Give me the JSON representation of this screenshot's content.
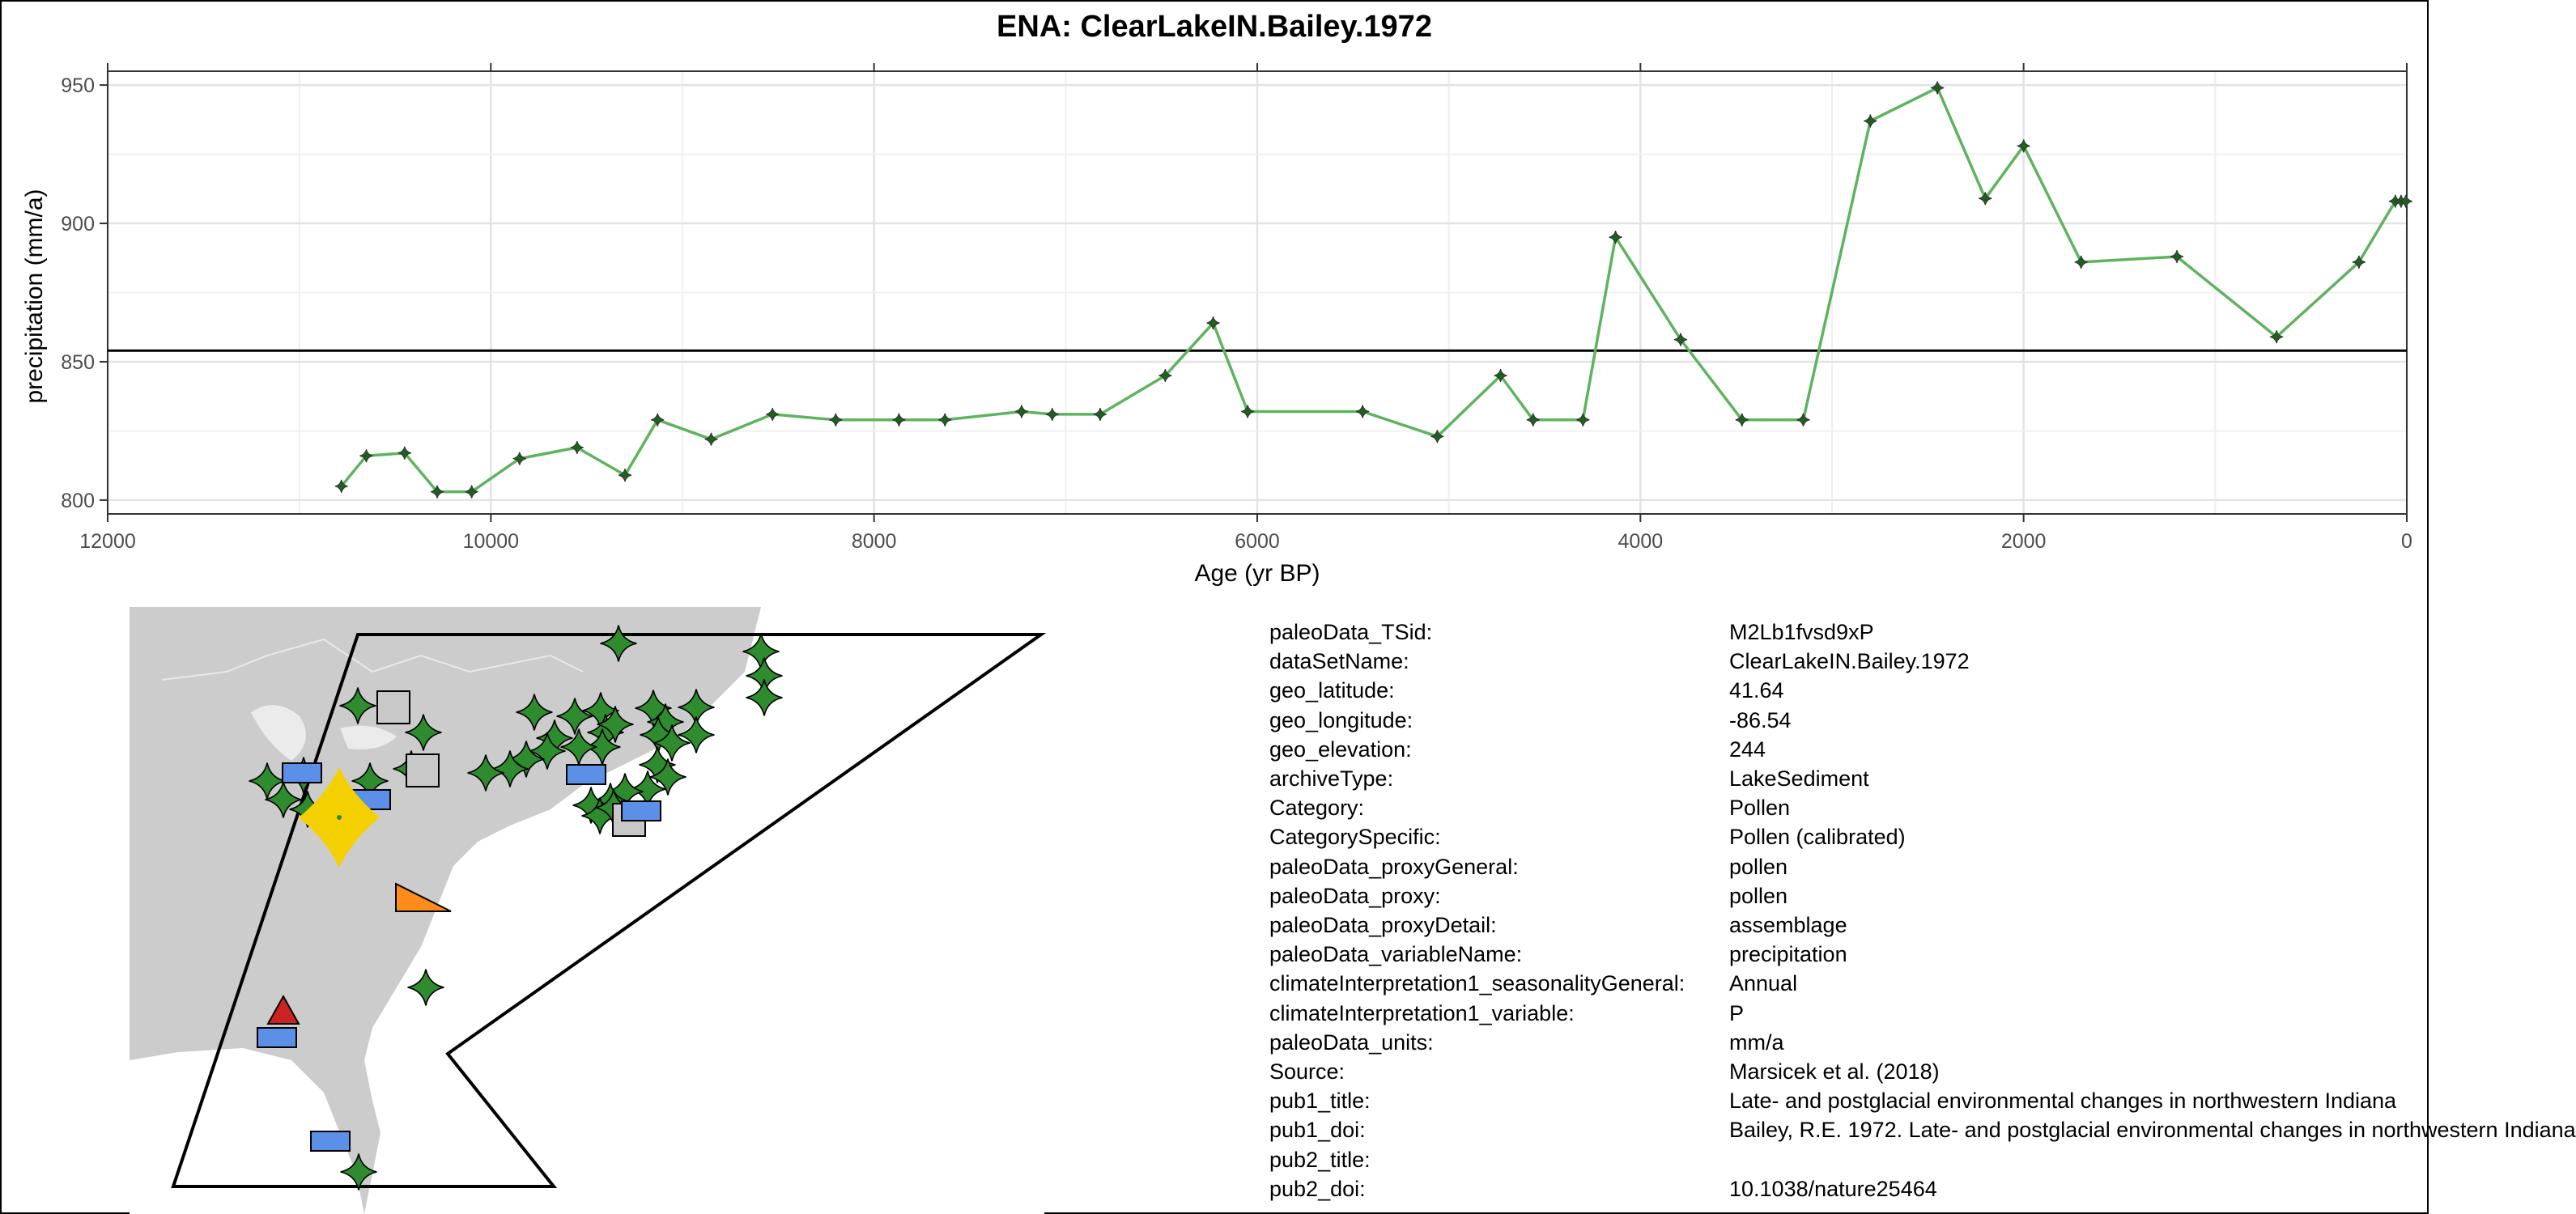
{
  "title": "ENA: ClearLakeIN.Bailey.1972",
  "chart_data": {
    "type": "line",
    "xlabel": "Age (yr BP)",
    "ylabel": "precipitation (mm/a)",
    "xlim": [
      12000,
      0
    ],
    "ylim": [
      795,
      955
    ],
    "x_reversed": true,
    "xticks": [
      12000,
      10000,
      8000,
      6000,
      4000,
      2000,
      0
    ],
    "yticks": [
      800,
      850,
      900,
      950
    ],
    "grid": true,
    "reference_line_y": 854,
    "series": [
      {
        "color": "#5fb35f",
        "marker_color": "#1f5f1f",
        "points": [
          [
            10780,
            805
          ],
          [
            10650,
            816
          ],
          [
            10450,
            817
          ],
          [
            10280,
            803
          ],
          [
            10100,
            803
          ],
          [
            9850,
            815
          ],
          [
            9550,
            819
          ],
          [
            9300,
            809
          ],
          [
            9130,
            829
          ],
          [
            8850,
            822
          ],
          [
            8530,
            831
          ],
          [
            8200,
            829
          ],
          [
            7870,
            829
          ],
          [
            7630,
            829
          ],
          [
            7230,
            832
          ],
          [
            7070,
            831
          ],
          [
            6820,
            831
          ],
          [
            6480,
            845
          ],
          [
            6230,
            864
          ],
          [
            6050,
            832
          ],
          [
            5450,
            832
          ],
          [
            5060,
            823
          ],
          [
            4730,
            845
          ],
          [
            4560,
            829
          ],
          [
            4300,
            829
          ],
          [
            4130,
            895
          ],
          [
            3790,
            858
          ],
          [
            3470,
            829
          ],
          [
            3150,
            829
          ],
          [
            2800,
            937
          ],
          [
            2450,
            949
          ],
          [
            2200,
            909
          ],
          [
            2000,
            928
          ],
          [
            1700,
            886
          ],
          [
            1200,
            888
          ],
          [
            680,
            859
          ],
          [
            250,
            886
          ],
          [
            60,
            908
          ],
          [
            30,
            908
          ],
          [
            5,
            908
          ]
        ]
      }
    ]
  },
  "map": {
    "land_color": "#cccccc",
    "water_color": "#ffffff",
    "highlight_color": "#f5d000",
    "sites": [
      {
        "shape": "star",
        "color": "#2e8b2e"
      },
      {
        "shape": "square",
        "color": "#c8c8c8"
      },
      {
        "shape": "rectangle",
        "color": "#5b8fe8"
      },
      {
        "shape": "triangle",
        "color": "#cc2222"
      },
      {
        "shape": "right-triangle",
        "color": "#ff8c1a"
      }
    ]
  },
  "metadata": [
    {
      "key": "paleoData_TSid:",
      "value": "M2Lb1fvsd9xP"
    },
    {
      "key": "dataSetName:",
      "value": "ClearLakeIN.Bailey.1972"
    },
    {
      "key": "geo_latitude:",
      "value": "41.64"
    },
    {
      "key": "geo_longitude:",
      "value": "-86.54"
    },
    {
      "key": "geo_elevation:",
      "value": "244"
    },
    {
      "key": "archiveType:",
      "value": "LakeSediment"
    },
    {
      "key": "Category:",
      "value": "Pollen"
    },
    {
      "key": "CategorySpecific:",
      "value": "Pollen (calibrated)"
    },
    {
      "key": "paleoData_proxyGeneral:",
      "value": "pollen"
    },
    {
      "key": "paleoData_proxy:",
      "value": "pollen"
    },
    {
      "key": "paleoData_proxyDetail:",
      "value": "assemblage"
    },
    {
      "key": "paleoData_variableName:",
      "value": "precipitation"
    },
    {
      "key": "climateInterpretation1_seasonalityGeneral:",
      "value": "Annual"
    },
    {
      "key": "climateInterpretation1_variable:",
      "value": "P"
    },
    {
      "key": "paleoData_units:",
      "value": "mm/a"
    },
    {
      "key": "Source:",
      "value": "Marsicek et al. (2018)"
    },
    {
      "key": "pub1_title:",
      "value": "Late- and postglacial environmental changes in northwestern Indiana"
    },
    {
      "key": "pub1_doi:",
      "value": "Bailey, R.E. 1972. Late- and postglacial environmental changes in northwestern Indiana"
    },
    {
      "key": "pub2_title:",
      "value": ""
    },
    {
      "key": "pub2_doi:",
      "value": "10.1038/nature25464"
    }
  ]
}
